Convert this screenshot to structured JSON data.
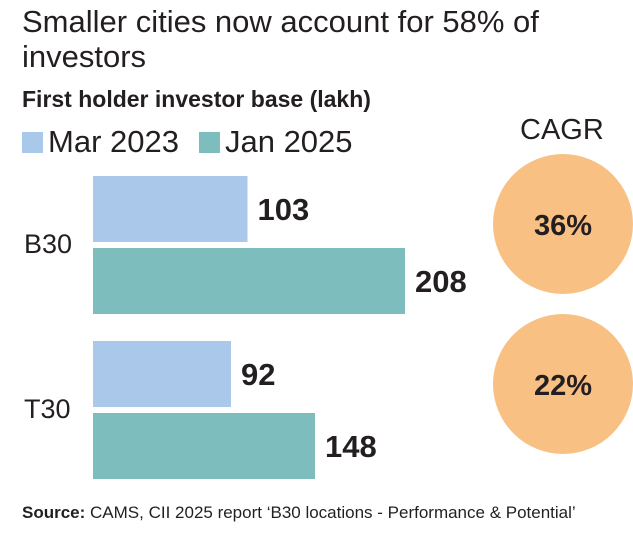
{
  "chart_data": {
    "type": "bar",
    "orientation": "horizontal",
    "title": "Smaller cities now account for 58% of investors",
    "subtitle": "First holder investor base (lakh)",
    "categories": [
      "B30",
      "T30"
    ],
    "series": [
      {
        "name": "Mar 2023",
        "values": [
          103,
          92
        ],
        "color": "#a9c8ea"
      },
      {
        "name": "Jan 2025",
        "values": [
          208,
          148
        ],
        "color": "#7dbdbd"
      }
    ],
    "legend_position": "top-left",
    "cagr": {
      "title": "CAGR",
      "values": [
        "36%",
        "22%"
      ],
      "color": "#f9c084"
    },
    "grid": false
  },
  "source": {
    "label": "Source:",
    "text": " CAMS, CII 2025 report ‘B30 locations - Performance & Potential’"
  }
}
